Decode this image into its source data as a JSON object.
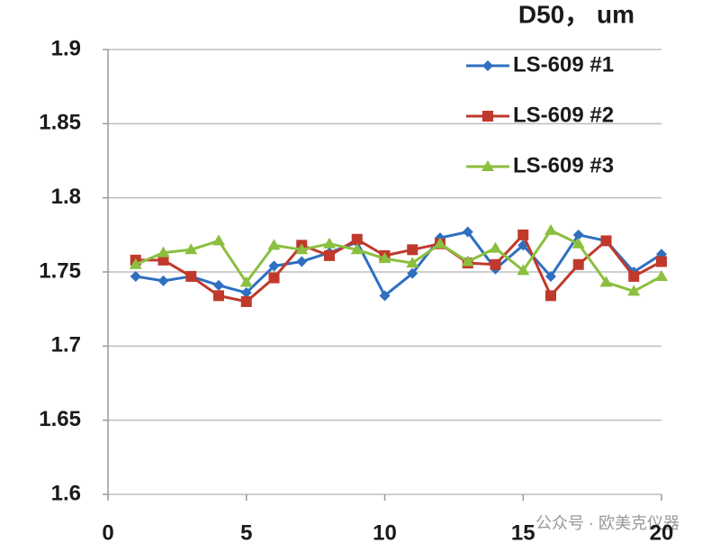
{
  "chart_data": {
    "type": "line",
    "title": "D50， um",
    "x": [
      1,
      2,
      3,
      4,
      5,
      6,
      7,
      8,
      9,
      10,
      11,
      12,
      13,
      14,
      15,
      16,
      17,
      18,
      19,
      20
    ],
    "series": [
      {
        "name": "LS-609 #1",
        "color": "#2e6fc0",
        "marker": "diamond",
        "values": [
          1.747,
          1.744,
          1.747,
          1.741,
          1.736,
          1.754,
          1.757,
          1.763,
          1.77,
          1.734,
          1.749,
          1.773,
          1.777,
          1.752,
          1.768,
          1.747,
          1.775,
          1.771,
          1.75,
          1.762
        ]
      },
      {
        "name": "LS-609 #2",
        "color": "#c0392b",
        "marker": "square",
        "values": [
          1.758,
          1.758,
          1.747,
          1.734,
          1.73,
          1.746,
          1.768,
          1.761,
          1.772,
          1.761,
          1.765,
          1.769,
          1.756,
          1.755,
          1.775,
          1.734,
          1.755,
          1.771,
          1.747,
          1.757
        ]
      },
      {
        "name": "LS-609 #3",
        "color": "#8bbf3f",
        "marker": "triangle",
        "values": [
          1.755,
          1.763,
          1.765,
          1.771,
          1.743,
          1.768,
          1.765,
          1.769,
          1.765,
          1.759,
          1.756,
          1.769,
          1.757,
          1.766,
          1.751,
          1.778,
          1.769,
          1.743,
          1.737,
          1.747
        ]
      }
    ],
    "xlim": [
      0,
      20
    ],
    "xticks": [
      0,
      5,
      10,
      15,
      20
    ],
    "ylim": [
      1.6,
      1.9
    ],
    "yticks": [
      1.6,
      1.65,
      1.7,
      1.75,
      1.8,
      1.85,
      1.9
    ],
    "grid": true,
    "legend": "top-right",
    "watermark": "公众号 · 欧美克仪器"
  }
}
